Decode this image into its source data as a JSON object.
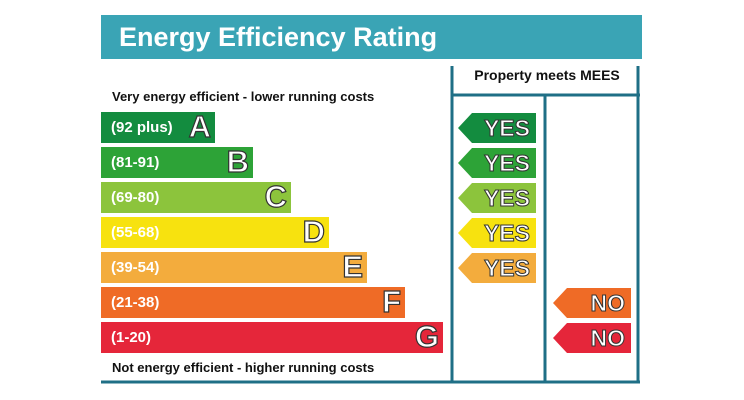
{
  "title": "Energy Efficiency Rating",
  "top_caption": "Very energy efficient - lower running costs",
  "bottom_caption": "Not energy efficient - higher running costs",
  "mees_title": "Property meets MEES",
  "colors": {
    "header": "#3aa4b5",
    "frame": "#1f6f86"
  },
  "bands": [
    {
      "range": "(92 plus)",
      "letter": "A",
      "color": "#138c3f",
      "mees": "YES"
    },
    {
      "range": "(81-91)",
      "letter": "B",
      "color": "#2da337",
      "mees": "YES"
    },
    {
      "range": "(69-80)",
      "letter": "C",
      "color": "#8cc43c",
      "mees": "YES"
    },
    {
      "range": "(55-68)",
      "letter": "D",
      "color": "#f7e20f",
      "mees": "YES"
    },
    {
      "range": "(39-54)",
      "letter": "E",
      "color": "#f3ac3d",
      "mees": "YES"
    },
    {
      "range": "(21-38)",
      "letter": "F",
      "color": "#ef6b26",
      "mees": "NO"
    },
    {
      "range": "(1-20)",
      "letter": "G",
      "color": "#e5263a",
      "mees": "NO"
    }
  ]
}
